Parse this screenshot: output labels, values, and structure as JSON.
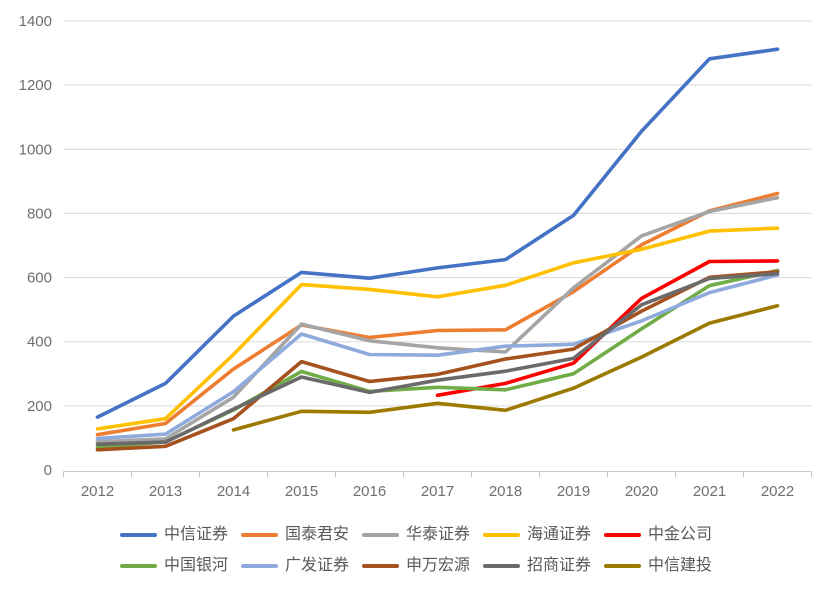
{
  "chart_data": {
    "type": "line",
    "title": "",
    "xlabel": "",
    "ylabel": "",
    "categories": [
      "2012",
      "2013",
      "2014",
      "2015",
      "2016",
      "2017",
      "2018",
      "2019",
      "2020",
      "2021",
      "2022"
    ],
    "y_axis": {
      "min": 0,
      "max": 1400,
      "step": 200,
      "ticks": [
        0,
        200,
        400,
        600,
        800,
        1000,
        1200,
        1400
      ]
    },
    "grid": true,
    "legend_position": "bottom",
    "colors": {
      "grid_line": "#d9d9d9",
      "axis_line": "#c6c6c6",
      "tick_label": "#6f6f6f",
      "legend_text": "#595959"
    },
    "series": [
      {
        "name": "中信证券",
        "color": "#4472C4",
        "values": [
          165,
          270,
          480,
          616,
          598,
          630,
          656,
          794,
          1056,
          1282,
          1312
        ]
      },
      {
        "name": "国泰君安",
        "color": "#ED7D31",
        "values": [
          110,
          145,
          315,
          452,
          413,
          435,
          437,
          556,
          702,
          808,
          862
        ]
      },
      {
        "name": "华泰证券",
        "color": "#A5A5A5",
        "values": [
          88,
          97,
          227,
          455,
          403,
          381,
          368,
          568,
          730,
          806,
          849
        ]
      },
      {
        "name": "海通证券",
        "color": "#FFC000",
        "values": [
          128,
          160,
          360,
          578,
          563,
          540,
          576,
          646,
          688,
          745,
          754
        ]
      },
      {
        "name": "中金公司",
        "color": "#FF0000",
        "values": [
          null,
          null,
          null,
          null,
          null,
          233,
          270,
          333,
          535,
          650,
          652
        ]
      },
      {
        "name": "中国银河",
        "color": "#70AD47",
        "values": [
          70,
          88,
          187,
          307,
          245,
          258,
          250,
          300,
          440,
          575,
          622
        ]
      },
      {
        "name": "广发证券",
        "color": "#8FAADC",
        "values": [
          98,
          112,
          244,
          424,
          360,
          358,
          386,
          392,
          465,
          553,
          608
        ]
      },
      {
        "name": "申万宏源",
        "color": "#A5521E",
        "values": [
          63,
          74,
          160,
          338,
          276,
          298,
          346,
          377,
          495,
          601,
          618
        ]
      },
      {
        "name": "招商证券",
        "color": "#6A6A6A",
        "values": [
          80,
          87,
          190,
          290,
          242,
          280,
          308,
          348,
          515,
          597,
          612
        ]
      },
      {
        "name": "中信建投",
        "color": "#9C7A00",
        "values": [
          null,
          null,
          125,
          183,
          180,
          208,
          186,
          255,
          352,
          458,
          512
        ]
      }
    ],
    "legend_rows": [
      [
        0,
        1,
        2,
        3,
        4
      ],
      [
        5,
        6,
        7,
        8,
        9
      ]
    ]
  }
}
